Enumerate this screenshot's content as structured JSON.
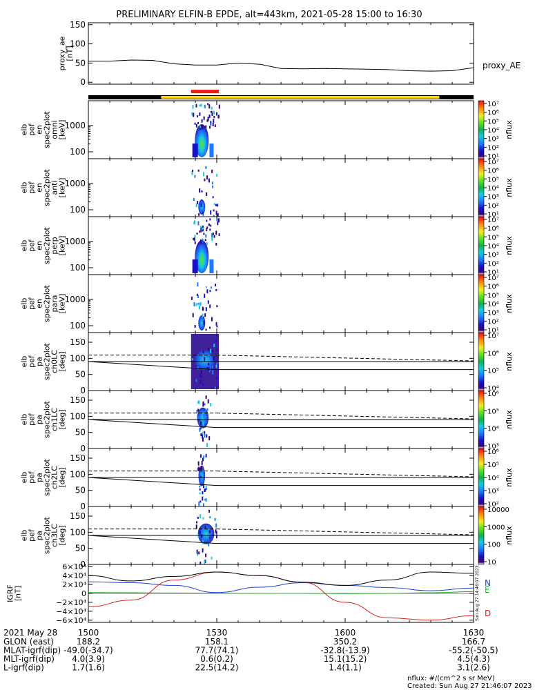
{
  "title": "PRELIMINARY ELFIN-B EPDE, alt=443km, 2021-05-28 15:00 to 16:30",
  "colors": {
    "bar_black": "#000000",
    "bar_yellow": "#ffd400",
    "bar_red": "#e8231a",
    "grf_n": "#1f3fd6",
    "grf_e": "#1fae2a",
    "grf_d": "#d61f1f"
  },
  "chart_data": [
    {
      "type": "line",
      "panel": "proxy_ae",
      "ylabel_lines": [
        "proxy_ae",
        "[nT]"
      ],
      "series_label": "proxy_AE",
      "ylim": [
        -5,
        155
      ],
      "yticks": [
        0,
        50,
        100,
        150
      ],
      "x": [
        0,
        5,
        10,
        15,
        20,
        25,
        30,
        35,
        40,
        45,
        50,
        55,
        60,
        65,
        70,
        75,
        80,
        85,
        90
      ],
      "values": [
        55,
        55,
        58,
        57,
        48,
        45,
        45,
        50,
        47,
        36,
        35,
        36,
        35,
        34,
        33,
        30,
        29,
        30,
        38
      ]
    },
    {
      "type": "heatmap",
      "panel": "en_spec_omni",
      "ylabel_lines": [
        "elb",
        "pef",
        "en",
        "spec2plot",
        "omni",
        "[keV]"
      ],
      "ytick_labels": [
        "1000",
        "100"
      ],
      "colorbar_label": "nflux",
      "colorbar_ticks": [
        "10^7",
        "10^6",
        "10^5",
        "10^4",
        "10^3",
        "10^2",
        "10^1"
      ]
    },
    {
      "type": "heatmap",
      "panel": "en_spec_anti",
      "ylabel_lines": [
        "elb",
        "pef",
        "en",
        "spec2plot",
        "anti",
        "[keV]"
      ],
      "ytick_labels": [
        "1000",
        "100"
      ],
      "colorbar_label": "nflux",
      "colorbar_ticks": [
        "10^7",
        "10^6",
        "10^5",
        "10^4",
        "10^3",
        "10^2",
        "10^1"
      ]
    },
    {
      "type": "heatmap",
      "panel": "en_spec_perp",
      "ylabel_lines": [
        "elb",
        "pef",
        "en",
        "spec2plot",
        "perp",
        "[keV]"
      ],
      "ytick_labels": [
        "1000",
        "100"
      ],
      "colorbar_label": "nflux",
      "colorbar_ticks": [
        "10^7",
        "10^6",
        "10^5",
        "10^4",
        "10^3",
        "10^2",
        "10^1"
      ]
    },
    {
      "type": "heatmap",
      "panel": "en_spec_para",
      "ylabel_lines": [
        "elb",
        "pef",
        "en",
        "spec2plot",
        "para",
        "[keV]"
      ],
      "ytick_labels": [
        "1000",
        "100"
      ],
      "colorbar_label": "nflux",
      "colorbar_ticks": [
        "10^7",
        "10^6",
        "10^5",
        "10^4",
        "10^3",
        "10^2",
        "10^1"
      ]
    },
    {
      "type": "heatmap",
      "panel": "pa_spec_ch0LC",
      "ylabel_lines": [
        "elb",
        "pef",
        "pa",
        "spec2plot",
        "ch0LC",
        "[deg]"
      ],
      "ylim": [
        0,
        180
      ],
      "yticks": [
        0,
        50,
        100,
        150
      ],
      "colorbar_label": "nflux",
      "colorbar_ticks": [
        "10^7",
        "10^6",
        "10^5",
        "10^4"
      ]
    },
    {
      "type": "heatmap",
      "panel": "pa_spec_ch1LC",
      "ylabel_lines": [
        "elb",
        "pef",
        "pa",
        "spec2plot",
        "ch1LC",
        "[deg]"
      ],
      "ylim": [
        0,
        180
      ],
      "yticks": [
        0,
        50,
        100,
        150
      ],
      "colorbar_label": "nflux",
      "colorbar_ticks": [
        "10^6",
        "10^5",
        "10^4",
        "10^3"
      ]
    },
    {
      "type": "heatmap",
      "panel": "pa_spec_ch2LC",
      "ylabel_lines": [
        "elb",
        "pef",
        "pa",
        "spec2plot",
        "ch2LC",
        "[deg]"
      ],
      "ylim": [
        0,
        180
      ],
      "yticks": [
        0,
        50,
        100,
        150
      ],
      "colorbar_label": "nflux",
      "colorbar_ticks": [
        "10^6",
        "10^5",
        "10^4",
        "10^3",
        "10^2"
      ]
    },
    {
      "type": "heatmap",
      "panel": "pa_spec_ch3LC",
      "ylabel_lines": [
        "elb",
        "pef",
        "pa",
        "spec2plot",
        "ch3LC",
        "[deg]"
      ],
      "ylim": [
        0,
        180
      ],
      "yticks": [
        0,
        50,
        100,
        150
      ],
      "colorbar_label": "nflux",
      "colorbar_ticks": [
        "10000",
        "1000",
        "100",
        "10"
      ]
    },
    {
      "type": "line",
      "panel": "igrf",
      "ylabel_lines": [
        "IGRF",
        "[nT]"
      ],
      "ylim": [
        -65000,
        65000
      ],
      "ytick_labels": [
        "6×10⁴",
        "4×10⁴",
        "2×10⁴",
        "0",
        "−2×10⁴",
        "−4×10⁴",
        "−6×10⁴"
      ],
      "yticks": [
        60000,
        40000,
        20000,
        0,
        -20000,
        -40000,
        -60000
      ],
      "x": [
        0,
        10,
        20,
        30,
        40,
        50,
        60,
        70,
        80,
        90
      ],
      "series": [
        {
          "name": "N",
          "values": [
            26000,
            24000,
            18000,
            2000,
            14000,
            24000,
            18000,
            13000,
            6000,
            12000
          ]
        },
        {
          "name": "E",
          "values": [
            2000,
            1500,
            1000,
            500,
            0,
            0,
            -500,
            0,
            1500,
            4000
          ]
        },
        {
          "name": "D",
          "values": [
            -30000,
            -15000,
            30000,
            48000,
            40000,
            25000,
            -20000,
            -55000,
            -60000,
            -50000
          ]
        },
        {
          "name": "",
          "values": [
            40000,
            28000,
            38000,
            48000,
            40000,
            25000,
            18000,
            30000,
            48000,
            45000
          ]
        }
      ]
    }
  ],
  "xaxis": {
    "tick_labels": [
      "1500",
      "1530",
      "1600",
      "1630"
    ]
  },
  "orbit_table": {
    "date_label": "2021 May 28",
    "rows": [
      {
        "label": "GLON (east)",
        "values": [
          "188.2",
          "158.1",
          "350.2",
          "166.7"
        ]
      },
      {
        "label": "MLAT-igrf(dip)",
        "values": [
          "-49.0(-34.7)",
          "77.7(74.1)",
          "-32.8(-13.9)",
          "-55.2(-50.5)"
        ]
      },
      {
        "label": "MLT-igrf(dip)",
        "values": [
          "4.0(3.9)",
          "0.6(0.2)",
          "15.1(15.2)",
          "4.5(4.3)"
        ]
      },
      {
        "label": "L-igrf(dip)",
        "values": [
          "1.7(1.6)",
          "22.5(14.2)",
          "1.4(1.1)",
          "3.1(2.6)"
        ]
      }
    ]
  },
  "footer": {
    "units": "nflux: #/(cm^2 s sr MeV)",
    "created": "Created: Sun Aug 27 21:46:07 2023",
    "side_stamp": "Sun Aug 27 14:46:07 2023"
  }
}
